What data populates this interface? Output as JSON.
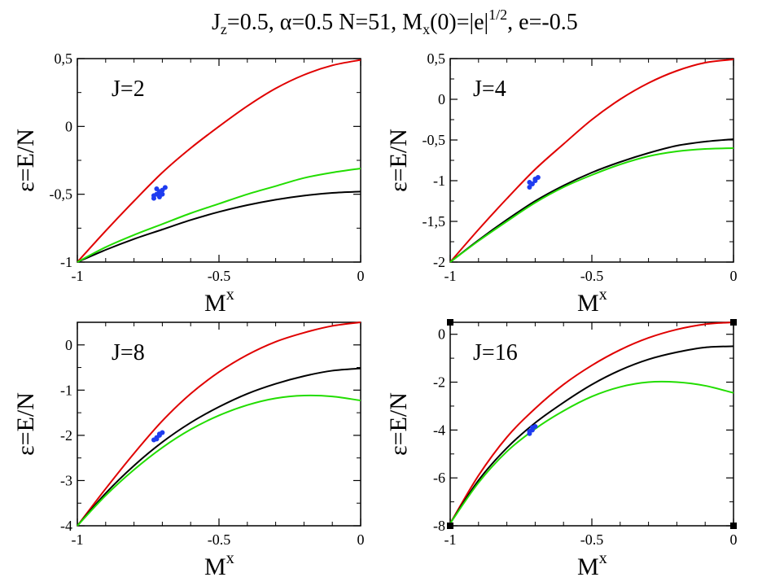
{
  "title": {
    "parts": [
      "J",
      "z",
      "=0.5, ",
      "α",
      "=0.5 N=51, M",
      "x",
      "(0)=|e|",
      "1/2",
      ", e=-0.5"
    ]
  },
  "chart_data": [
    {
      "type": "line",
      "panel_label": "J=2",
      "xlabel": "M",
      "xlabel_sup": "x",
      "ylabel": "ε=E/N",
      "xlim": [
        -1,
        0
      ],
      "ylim": [
        -1,
        0.5
      ],
      "x_ticks": [
        {
          "v": -1,
          "t": "-1"
        },
        {
          "v": -0.5,
          "t": "-0.5"
        },
        {
          "v": 0,
          "t": "0"
        }
      ],
      "y_ticks": [
        {
          "v": -1,
          "t": "-1"
        },
        {
          "v": -0.5,
          "t": "-0,5"
        },
        {
          "v": 0,
          "t": "0"
        },
        {
          "v": 0.5,
          "t": "0,5"
        }
      ],
      "series": [
        {
          "color": "#e00000",
          "x": [
            -1,
            -0.9,
            -0.8,
            -0.7,
            -0.6,
            -0.5,
            -0.4,
            -0.3,
            -0.2,
            -0.1,
            0
          ],
          "y": [
            -1,
            -0.77,
            -0.55,
            -0.34,
            -0.16,
            0.0,
            0.15,
            0.28,
            0.38,
            0.45,
            0.49
          ]
        },
        {
          "color": "#000000",
          "x": [
            -1,
            -0.9,
            -0.8,
            -0.7,
            -0.6,
            -0.5,
            -0.4,
            -0.3,
            -0.2,
            -0.1,
            0
          ],
          "y": [
            -1,
            -0.91,
            -0.83,
            -0.76,
            -0.69,
            -0.63,
            -0.58,
            -0.54,
            -0.51,
            -0.49,
            -0.48
          ]
        },
        {
          "color": "#22dd00",
          "x": [
            -1,
            -0.9,
            -0.8,
            -0.7,
            -0.6,
            -0.5,
            -0.4,
            -0.3,
            -0.2,
            -0.1,
            0
          ],
          "y": [
            -1,
            -0.89,
            -0.8,
            -0.72,
            -0.64,
            -0.57,
            -0.5,
            -0.44,
            -0.38,
            -0.34,
            -0.31
          ]
        }
      ],
      "points": {
        "color": "#1e3cf0",
        "x": [
          -0.73,
          -0.72,
          -0.71,
          -0.71,
          -0.7,
          -0.72,
          -0.69,
          -0.7,
          -0.73,
          -0.71
        ],
        "y": [
          -0.53,
          -0.5,
          -0.48,
          -0.52,
          -0.47,
          -0.46,
          -0.45,
          -0.5,
          -0.51,
          -0.49
        ]
      }
    },
    {
      "type": "line",
      "panel_label": "J=4",
      "xlabel": "M",
      "xlabel_sup": "x",
      "ylabel": "ε=E/N",
      "xlim": [
        -1,
        0
      ],
      "ylim": [
        -2,
        0.5
      ],
      "x_ticks": [
        {
          "v": -1,
          "t": "-1"
        },
        {
          "v": -0.5,
          "t": "-0.5"
        },
        {
          "v": 0,
          "t": "0"
        }
      ],
      "y_ticks": [
        {
          "v": -2,
          "t": "-2"
        },
        {
          "v": -1.5,
          "t": "-1,5"
        },
        {
          "v": -1,
          "t": "-1"
        },
        {
          "v": -0.5,
          "t": "-0,5"
        },
        {
          "v": 0,
          "t": "0"
        },
        {
          "v": 0.5,
          "t": "0,5"
        }
      ],
      "series": [
        {
          "color": "#e00000",
          "x": [
            -1,
            -0.9,
            -0.8,
            -0.7,
            -0.6,
            -0.5,
            -0.4,
            -0.3,
            -0.2,
            -0.1,
            0
          ],
          "y": [
            -2,
            -1.6,
            -1.22,
            -0.86,
            -0.55,
            -0.25,
            0.0,
            0.2,
            0.35,
            0.45,
            0.49
          ]
        },
        {
          "color": "#000000",
          "x": [
            -1,
            -0.9,
            -0.8,
            -0.7,
            -0.6,
            -0.5,
            -0.4,
            -0.3,
            -0.2,
            -0.1,
            0
          ],
          "y": [
            -2,
            -1.73,
            -1.48,
            -1.25,
            -1.06,
            -0.9,
            -0.77,
            -0.66,
            -0.57,
            -0.52,
            -0.49
          ]
        },
        {
          "color": "#22dd00",
          "x": [
            -1,
            -0.9,
            -0.8,
            -0.7,
            -0.6,
            -0.5,
            -0.4,
            -0.3,
            -0.2,
            -0.1,
            0
          ],
          "y": [
            -2,
            -1.74,
            -1.5,
            -1.27,
            -1.08,
            -0.93,
            -0.8,
            -0.7,
            -0.64,
            -0.61,
            -0.6
          ]
        }
      ],
      "points": {
        "color": "#1e3cf0",
        "x": [
          -0.72,
          -0.71,
          -0.7,
          -0.69,
          -0.72,
          -0.7
        ],
        "y": [
          -1.08,
          -1.04,
          -1.0,
          -0.96,
          -1.02,
          -0.98
        ]
      }
    },
    {
      "type": "line",
      "panel_label": "J=8",
      "xlabel": "M",
      "xlabel_sup": "x",
      "ylabel": "ε=E/N",
      "xlim": [
        -1,
        0
      ],
      "ylim": [
        -4,
        0.5
      ],
      "x_ticks": [
        {
          "v": -1,
          "t": "-1"
        },
        {
          "v": -0.5,
          "t": "-0.5"
        },
        {
          "v": 0,
          "t": "0"
        }
      ],
      "y_ticks": [
        {
          "v": -4,
          "t": "-4"
        },
        {
          "v": -3,
          "t": "-3"
        },
        {
          "v": -2,
          "t": "-2"
        },
        {
          "v": -1,
          "t": "-1"
        },
        {
          "v": 0,
          "t": "0"
        }
      ],
      "series": [
        {
          "color": "#e00000",
          "x": [
            -1,
            -0.9,
            -0.8,
            -0.7,
            -0.6,
            -0.5,
            -0.4,
            -0.3,
            -0.2,
            -0.1,
            0
          ],
          "y": [
            -4,
            -3.18,
            -2.4,
            -1.68,
            -1.08,
            -0.6,
            -0.22,
            0.07,
            0.27,
            0.42,
            0.5
          ]
        },
        {
          "color": "#000000",
          "x": [
            -1,
            -0.9,
            -0.8,
            -0.7,
            -0.6,
            -0.5,
            -0.4,
            -0.3,
            -0.2,
            -0.1,
            0
          ],
          "y": [
            -4,
            -3.28,
            -2.67,
            -2.15,
            -1.72,
            -1.37,
            -1.08,
            -0.86,
            -0.69,
            -0.57,
            -0.52
          ]
        },
        {
          "color": "#22dd00",
          "x": [
            -1,
            -0.9,
            -0.8,
            -0.7,
            -0.6,
            -0.5,
            -0.4,
            -0.3,
            -0.2,
            -0.1,
            0
          ],
          "y": [
            -4,
            -3.33,
            -2.76,
            -2.27,
            -1.87,
            -1.56,
            -1.33,
            -1.18,
            -1.12,
            -1.14,
            -1.23
          ]
        }
      ],
      "points": {
        "color": "#1e3cf0",
        "x": [
          -0.73,
          -0.72,
          -0.71,
          -0.7,
          -0.71,
          -0.72
        ],
        "y": [
          -2.1,
          -2.05,
          -2.0,
          -1.94,
          -1.97,
          -2.08
        ]
      }
    },
    {
      "type": "line",
      "panel_label": "J=16",
      "xlabel": "M",
      "xlabel_sup": "x",
      "ylabel": "ε=E/N",
      "xlim": [
        -1,
        0
      ],
      "ylim": [
        -8,
        0.5
      ],
      "x_ticks": [
        {
          "v": -1,
          "t": "-1"
        },
        {
          "v": -0.5,
          "t": "-0.5"
        },
        {
          "v": 0,
          "t": "0"
        }
      ],
      "y_ticks": [
        {
          "v": -8,
          "t": "-8"
        },
        {
          "v": -6,
          "t": "-6"
        },
        {
          "v": -4,
          "t": "-4"
        },
        {
          "v": -2,
          "t": "-2"
        },
        {
          "v": 0,
          "t": "0"
        }
      ],
      "series": [
        {
          "color": "#e00000",
          "x": [
            -1,
            -0.9,
            -0.8,
            -0.7,
            -0.6,
            -0.5,
            -0.4,
            -0.3,
            -0.2,
            -0.1,
            0
          ],
          "y": [
            -7.9,
            -5.9,
            -4.3,
            -3.1,
            -2.1,
            -1.3,
            -0.65,
            -0.15,
            0.2,
            0.42,
            0.5
          ]
        },
        {
          "color": "#000000",
          "x": [
            -1,
            -0.9,
            -0.8,
            -0.7,
            -0.6,
            -0.5,
            -0.4,
            -0.3,
            -0.2,
            -0.1,
            0
          ],
          "y": [
            -7.9,
            -6.1,
            -4.75,
            -3.7,
            -2.85,
            -2.1,
            -1.5,
            -1.05,
            -0.75,
            -0.55,
            -0.5
          ]
        },
        {
          "color": "#22dd00",
          "x": [
            -1,
            -0.9,
            -0.8,
            -0.7,
            -0.6,
            -0.5,
            -0.4,
            -0.3,
            -0.2,
            -0.1,
            0
          ],
          "y": [
            -7.9,
            -6.2,
            -4.9,
            -3.95,
            -3.2,
            -2.6,
            -2.2,
            -2.0,
            -2.0,
            -2.15,
            -2.45
          ]
        }
      ],
      "points": {
        "color": "#1e3cf0",
        "x": [
          -0.72,
          -0.71,
          -0.7,
          -0.71,
          -0.72
        ],
        "y": [
          -4.15,
          -4.0,
          -3.85,
          -3.9,
          -4.05
        ]
      }
    }
  ]
}
